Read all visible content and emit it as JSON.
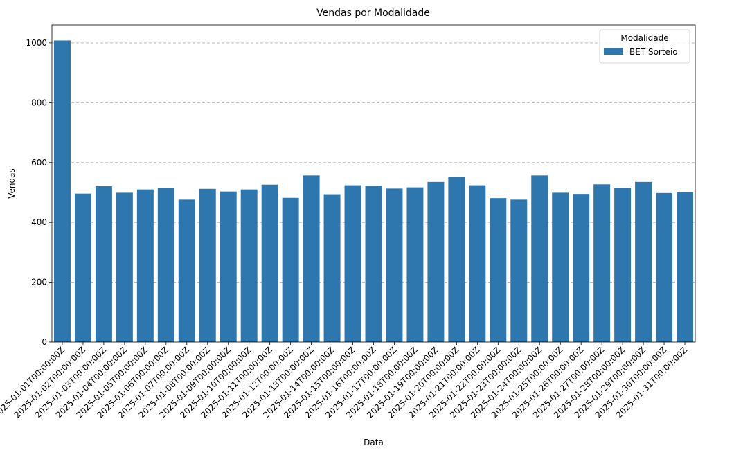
{
  "chart_data": {
    "type": "bar",
    "title": "Vendas por Modalidade",
    "xlabel": "Data",
    "ylabel": "Vendas",
    "ylim": [
      0,
      1060
    ],
    "yticks": [
      0,
      200,
      400,
      600,
      800,
      1000
    ],
    "grid": "y-dashed",
    "legend": {
      "title": "Modalidade",
      "placement": "top-right"
    },
    "categories": [
      "2025-01-01T00:00:00Z",
      "2025-01-02T00:00:00Z",
      "2025-01-03T00:00:00Z",
      "2025-01-04T00:00:00Z",
      "2025-01-05T00:00:00Z",
      "2025-01-06T00:00:00Z",
      "2025-01-07T00:00:00Z",
      "2025-01-08T00:00:00Z",
      "2025-01-09T00:00:00Z",
      "2025-01-10T00:00:00Z",
      "2025-01-11T00:00:00Z",
      "2025-01-12T00:00:00Z",
      "2025-01-13T00:00:00Z",
      "2025-01-14T00:00:00Z",
      "2025-01-15T00:00:00Z",
      "2025-01-16T00:00:00Z",
      "2025-01-17T00:00:00Z",
      "2025-01-18T00:00:00Z",
      "2025-01-19T00:00:00Z",
      "2025-01-20T00:00:00Z",
      "2025-01-21T00:00:00Z",
      "2025-01-22T00:00:00Z",
      "2025-01-23T00:00:00Z",
      "2025-01-24T00:00:00Z",
      "2025-01-25T00:00:00Z",
      "2025-01-26T00:00:00Z",
      "2025-01-27T00:00:00Z",
      "2025-01-28T00:00:00Z",
      "2025-01-29T00:00:00Z",
      "2025-01-30T00:00:00Z",
      "2025-01-31T00:00:00Z"
    ],
    "series": [
      {
        "name": "BET Sorteio",
        "color": "#2e76ae",
        "values": [
          1008,
          496,
          521,
          499,
          510,
          514,
          476,
          512,
          503,
          510,
          526,
          482,
          557,
          494,
          524,
          522,
          513,
          517,
          535,
          551,
          524,
          481,
          476,
          557,
          499,
          495,
          527,
          515,
          535,
          498,
          501
        ]
      }
    ]
  }
}
